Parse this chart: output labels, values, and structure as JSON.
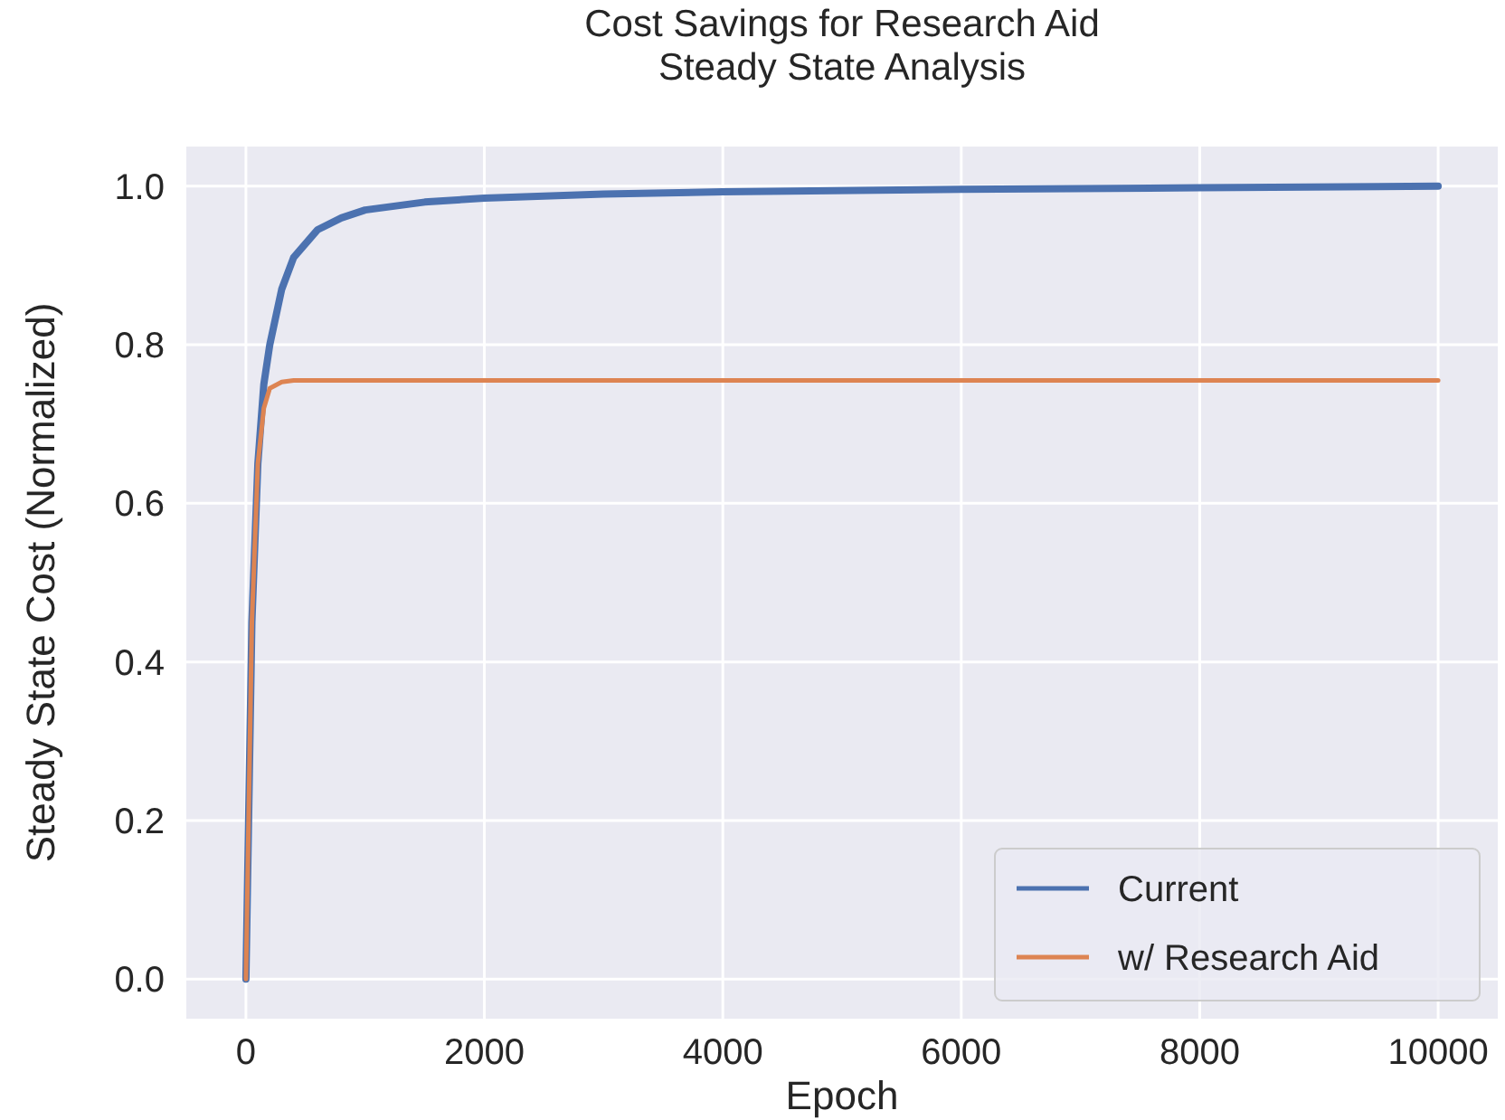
{
  "chart_data": {
    "type": "line",
    "title": "Cost Savings for Research Aid\nSteady State Analysis",
    "xlabel": "Epoch",
    "ylabel": "Steady State Cost (Normalized)",
    "xlim": [
      -500,
      10500
    ],
    "ylim": [
      -0.05,
      1.05
    ],
    "xticks": [
      0,
      2000,
      4000,
      6000,
      8000,
      10000
    ],
    "yticks": [
      {
        "value": 0,
        "label": "0.0"
      },
      {
        "value": 0.2,
        "label": "0.2"
      },
      {
        "value": 0.4,
        "label": "0.4"
      },
      {
        "value": 0.6,
        "label": "0.6"
      },
      {
        "value": 0.8,
        "label": "0.8"
      },
      {
        "value": 1,
        "label": "1.0"
      }
    ],
    "grid": true,
    "legend": "bottom right",
    "line_style": "solid",
    "marker": "none",
    "series": [
      {
        "name": "Current",
        "color": "#4c72b0",
        "x": [
          0,
          50,
          100,
          150,
          200,
          300,
          400,
          600,
          800,
          1000,
          1500,
          2000,
          3000,
          4000,
          6000,
          8000,
          10000
        ],
        "values": [
          0,
          0.45,
          0.65,
          0.75,
          0.8,
          0.87,
          0.91,
          0.945,
          0.96,
          0.97,
          0.98,
          0.985,
          0.99,
          0.993,
          0.996,
          0.998,
          1.0
        ]
      },
      {
        "name": "w/ Research Aid",
        "color": "#dd8452",
        "x": [
          0,
          50,
          100,
          150,
          200,
          300,
          400,
          10000
        ],
        "values": [
          0,
          0.45,
          0.65,
          0.72,
          0.745,
          0.753,
          0.755,
          0.755
        ]
      }
    ]
  }
}
